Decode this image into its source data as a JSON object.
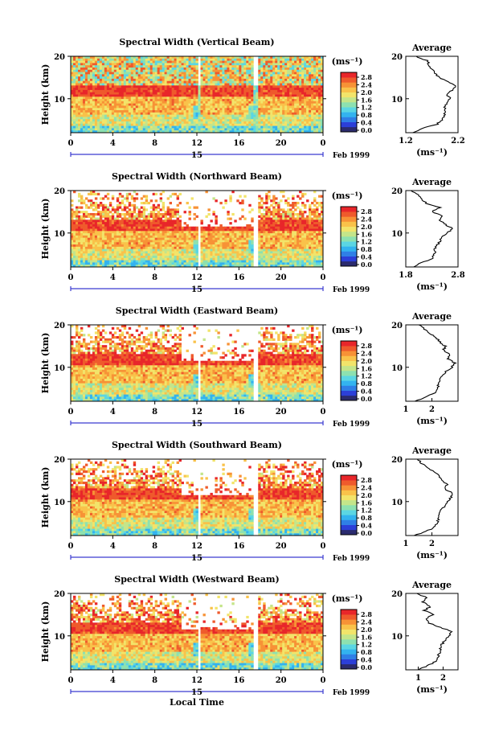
{
  "chart_data": [
    {
      "type": "heatmap",
      "title": "Spectral Width (Vertical Beam)",
      "ylabel": "Height (km)",
      "ylim": [
        2,
        20
      ],
      "y_ticks": [
        "20",
        "10"
      ],
      "xlim": [
        0,
        24
      ],
      "x_ticks": [
        "0",
        "4",
        "8",
        "12",
        "16",
        "20",
        "0"
      ],
      "date_day": "15",
      "date_label": "Feb 1999",
      "colorbar": {
        "unit": "(ms⁻¹)",
        "ticks": [
          "2.8",
          "2.4",
          "2.0",
          "1.6",
          "1.2",
          "0.8",
          "0.4",
          "0.0"
        ]
      },
      "average": {
        "title": "Average",
        "xlabel": "(ms⁻¹)",
        "x_ticks": [
          "1.2",
          "2.2"
        ],
        "xlim": [
          1.2,
          2.2
        ],
        "y_ticks": [
          "20",
          "10"
        ],
        "ylim": [
          2,
          20
        ],
        "profile": [
          [
            1.35,
            2
          ],
          [
            1.5,
            3
          ],
          [
            1.8,
            4
          ],
          [
            1.9,
            5
          ],
          [
            1.93,
            6
          ],
          [
            1.95,
            7
          ],
          [
            1.95,
            8
          ],
          [
            2.0,
            9
          ],
          [
            2.05,
            10
          ],
          [
            1.98,
            11
          ],
          [
            2.1,
            12
          ],
          [
            2.15,
            13
          ],
          [
            2.0,
            14
          ],
          [
            1.85,
            15
          ],
          [
            1.75,
            16
          ],
          [
            1.7,
            17
          ],
          [
            1.65,
            18
          ],
          [
            1.6,
            19
          ],
          [
            1.4,
            20
          ]
        ]
      }
    },
    {
      "type": "heatmap",
      "title": "Spectral Width (Northward Beam)",
      "ylabel": "Height (km)",
      "ylim": [
        2,
        20
      ],
      "y_ticks": [
        "20",
        "10"
      ],
      "xlim": [
        0,
        24
      ],
      "x_ticks": [
        "0",
        "4",
        "8",
        "12",
        "16",
        "20",
        "0"
      ],
      "date_day": "15",
      "date_label": "Feb 1999",
      "colorbar": {
        "unit": "(ms⁻¹)",
        "ticks": [
          "2.8",
          "2.4",
          "2.0",
          "1.6",
          "1.2",
          "0.8",
          "0.4",
          "0.0"
        ]
      },
      "average": {
        "title": "Average",
        "xlabel": "(ms⁻¹)",
        "x_ticks": [
          "1.8",
          "2.8"
        ],
        "xlim": [
          1.8,
          2.8
        ],
        "y_ticks": [
          "20",
          "10"
        ],
        "ylim": [
          2,
          20
        ],
        "profile": [
          [
            1.95,
            2
          ],
          [
            2.1,
            3
          ],
          [
            2.3,
            4
          ],
          [
            2.35,
            5
          ],
          [
            2.35,
            6
          ],
          [
            2.4,
            7
          ],
          [
            2.45,
            8
          ],
          [
            2.5,
            9
          ],
          [
            2.6,
            10
          ],
          [
            2.7,
            11
          ],
          [
            2.55,
            12
          ],
          [
            2.45,
            13
          ],
          [
            2.5,
            14
          ],
          [
            2.3,
            15
          ],
          [
            2.45,
            16
          ],
          [
            2.2,
            17
          ],
          [
            2.1,
            18
          ],
          [
            2.05,
            19
          ],
          [
            1.9,
            20
          ]
        ]
      }
    },
    {
      "type": "heatmap",
      "title": "Spectral Width (Eastward Beam)",
      "ylabel": "Height (km)",
      "ylim": [
        2,
        20
      ],
      "y_ticks": [
        "20",
        "10"
      ],
      "xlim": [
        0,
        24
      ],
      "x_ticks": [
        "0",
        "4",
        "8",
        "12",
        "16",
        "20",
        "0"
      ],
      "date_day": "15",
      "date_label": "Feb 1999",
      "colorbar": {
        "unit": "(ms⁻¹)",
        "ticks": [
          "2.8",
          "2.4",
          "2.0",
          "1.6",
          "1.2",
          "0.8",
          "0.4",
          "0.0"
        ]
      },
      "average": {
        "title": "Average",
        "xlabel": "(ms⁻¹)",
        "x_ticks": [
          "1",
          "2"
        ],
        "xlim": [
          1,
          3
        ],
        "y_ticks": [
          "20",
          "10"
        ],
        "ylim": [
          2,
          20
        ],
        "profile": [
          [
            1.3,
            2
          ],
          [
            1.8,
            3
          ],
          [
            2.1,
            4
          ],
          [
            2.2,
            5
          ],
          [
            2.25,
            6
          ],
          [
            2.3,
            7
          ],
          [
            2.4,
            8
          ],
          [
            2.55,
            9
          ],
          [
            2.75,
            10
          ],
          [
            2.9,
            11
          ],
          [
            2.6,
            12
          ],
          [
            2.7,
            13
          ],
          [
            2.45,
            14
          ],
          [
            2.5,
            15
          ],
          [
            2.3,
            16
          ],
          [
            2.15,
            17
          ],
          [
            1.95,
            18
          ],
          [
            1.7,
            19
          ],
          [
            1.5,
            20
          ]
        ]
      }
    },
    {
      "type": "heatmap",
      "title": "Spectral Width (Southward Beam)",
      "ylabel": "Height (km)",
      "ylim": [
        2,
        20
      ],
      "y_ticks": [
        "20",
        "10"
      ],
      "xlim": [
        0,
        24
      ],
      "x_ticks": [
        "0",
        "4",
        "8",
        "12",
        "16",
        "20",
        "0"
      ],
      "date_day": "15",
      "date_label": "Feb 1999",
      "colorbar": {
        "unit": "(ms⁻¹)",
        "ticks": [
          "2.8",
          "2.4",
          "2.0",
          "1.6",
          "1.2",
          "0.8",
          "0.4",
          "0.0"
        ]
      },
      "average": {
        "title": "Average",
        "xlabel": "(ms⁻¹)",
        "x_ticks": [
          "1",
          "2"
        ],
        "xlim": [
          1,
          3
        ],
        "y_ticks": [
          "20",
          "10"
        ],
        "ylim": [
          2,
          20
        ],
        "profile": [
          [
            1.3,
            2
          ],
          [
            1.8,
            3
          ],
          [
            2.1,
            4
          ],
          [
            2.2,
            5
          ],
          [
            2.25,
            6
          ],
          [
            2.3,
            7
          ],
          [
            2.35,
            8
          ],
          [
            2.5,
            9
          ],
          [
            2.6,
            10
          ],
          [
            2.75,
            11
          ],
          [
            2.8,
            12
          ],
          [
            2.5,
            13
          ],
          [
            2.6,
            14
          ],
          [
            2.35,
            15
          ],
          [
            2.3,
            16
          ],
          [
            2.1,
            17
          ],
          [
            1.85,
            18
          ],
          [
            1.6,
            19
          ],
          [
            1.45,
            20
          ]
        ]
      }
    },
    {
      "type": "heatmap",
      "title": "Spectral Width (Westward Beam)",
      "ylabel": "Height (km)",
      "ylim": [
        2,
        20
      ],
      "y_ticks": [
        "20",
        "10"
      ],
      "xlim": [
        0,
        24
      ],
      "x_ticks": [
        "0",
        "4",
        "8",
        "12",
        "16",
        "20",
        "0"
      ],
      "date_day": "15",
      "date_label": "Feb 1999",
      "xlabel": "Local Time",
      "colorbar": {
        "unit": "(ms⁻¹)",
        "ticks": [
          "2.8",
          "2.4",
          "2.0",
          "1.6",
          "1.2",
          "0.8",
          "0.4",
          "0.0"
        ]
      },
      "average": {
        "title": "Average",
        "xlabel": "(ms⁻¹)",
        "x_ticks": [
          "1",
          "2"
        ],
        "xlim": [
          0.5,
          2.6
        ],
        "y_ticks": [
          "20",
          "10"
        ],
        "ylim": [
          2,
          20
        ],
        "profile": [
          [
            1.0,
            2
          ],
          [
            1.4,
            3
          ],
          [
            1.7,
            4
          ],
          [
            1.8,
            5
          ],
          [
            1.85,
            6
          ],
          [
            1.9,
            7
          ],
          [
            1.95,
            8
          ],
          [
            2.1,
            9
          ],
          [
            2.25,
            10
          ],
          [
            2.35,
            11
          ],
          [
            1.9,
            12
          ],
          [
            1.45,
            13
          ],
          [
            1.3,
            14
          ],
          [
            1.6,
            15
          ],
          [
            1.25,
            16
          ],
          [
            1.5,
            17
          ],
          [
            1.15,
            18
          ],
          [
            1.35,
            19
          ],
          [
            0.95,
            20
          ]
        ]
      }
    }
  ],
  "colors": {
    "scale": [
      "#2b2b6e",
      "#2c3fd8",
      "#2f7fe6",
      "#33b3ef",
      "#5bd6e3",
      "#8de1b0",
      "#c4e58a",
      "#f2e46a",
      "#f9c24a",
      "#f79236",
      "#ef5a2c",
      "#e8262a"
    ],
    "axis": "#000000",
    "time_axis": "#3b3bd0"
  }
}
